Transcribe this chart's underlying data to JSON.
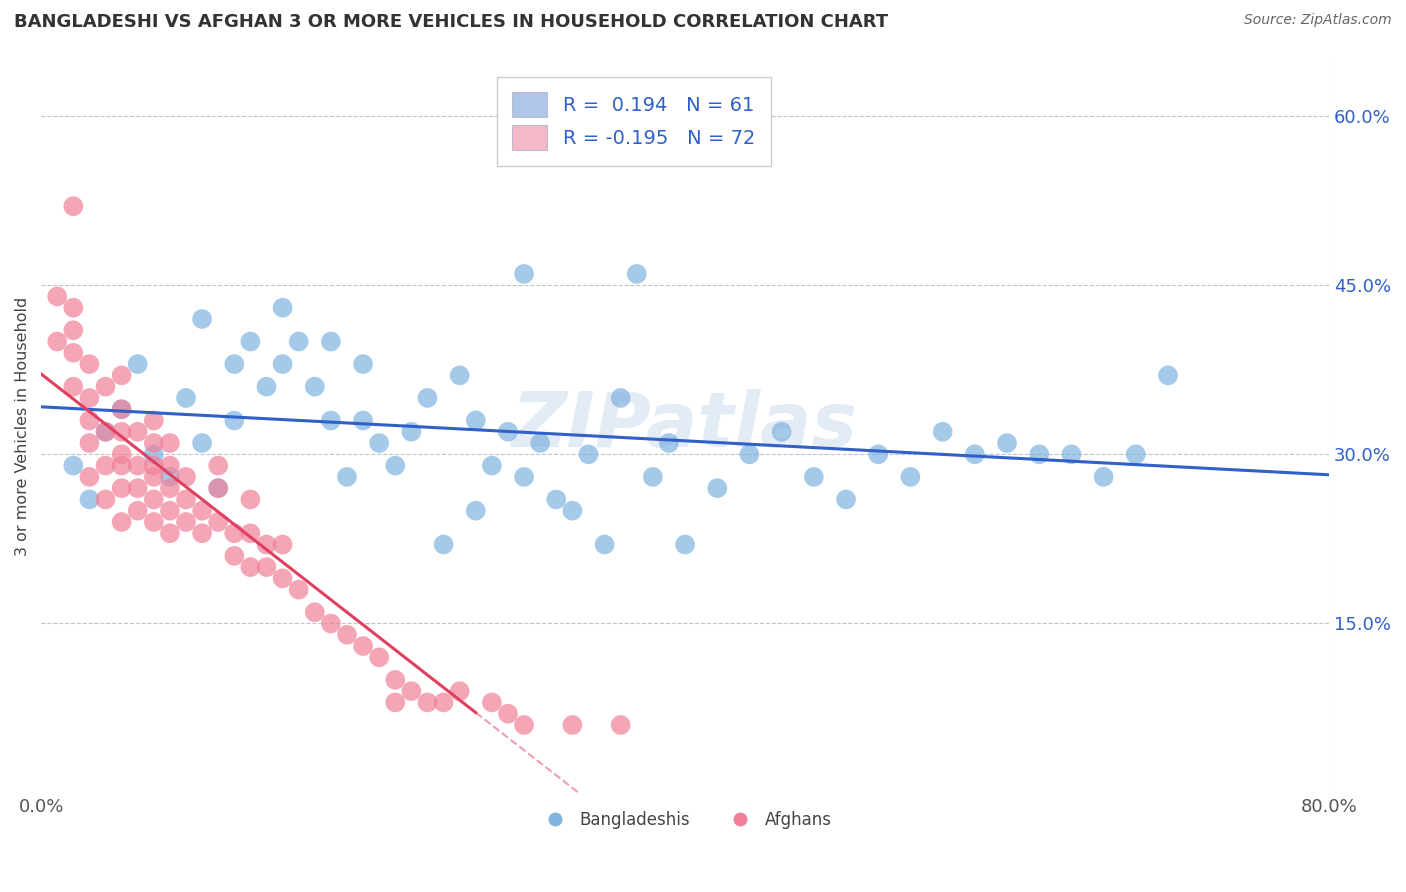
{
  "title": "BANGLADESHI VS AFGHAN 3 OR MORE VEHICLES IN HOUSEHOLD CORRELATION CHART",
  "source": "Source: ZipAtlas.com",
  "ylabel": "3 or more Vehicles in Household",
  "legend1_label": "R =  0.194   N = 61",
  "legend2_label": "R = -0.195   N = 72",
  "legend1_color": "#aec6e8",
  "legend2_color": "#f4b8c8",
  "blue_dot_color": "#7fb3e0",
  "pink_dot_color": "#f08098",
  "blue_line_color": "#3060c8",
  "pink_line_color": "#e04060",
  "watermark": "ZIPatlas",
  "background_color": "#ffffff",
  "grid_color": "#c0c0d0",
  "xlim": [
    0.0,
    0.8
  ],
  "ylim": [
    0.0,
    0.65
  ],
  "blue_scatter_x": [
    0.02,
    0.03,
    0.04,
    0.05,
    0.06,
    0.07,
    0.08,
    0.09,
    0.1,
    0.1,
    0.11,
    0.12,
    0.12,
    0.13,
    0.14,
    0.15,
    0.15,
    0.16,
    0.17,
    0.18,
    0.18,
    0.19,
    0.2,
    0.2,
    0.21,
    0.22,
    0.23,
    0.24,
    0.25,
    0.26,
    0.27,
    0.27,
    0.28,
    0.29,
    0.3,
    0.3,
    0.31,
    0.32,
    0.33,
    0.34,
    0.35,
    0.36,
    0.37,
    0.38,
    0.39,
    0.4,
    0.42,
    0.44,
    0.46,
    0.48,
    0.5,
    0.52,
    0.54,
    0.56,
    0.58,
    0.6,
    0.62,
    0.64,
    0.66,
    0.68,
    0.7
  ],
  "blue_scatter_y": [
    0.29,
    0.26,
    0.32,
    0.34,
    0.38,
    0.3,
    0.28,
    0.35,
    0.31,
    0.42,
    0.27,
    0.38,
    0.33,
    0.4,
    0.36,
    0.38,
    0.43,
    0.4,
    0.36,
    0.33,
    0.4,
    0.28,
    0.33,
    0.38,
    0.31,
    0.29,
    0.32,
    0.35,
    0.22,
    0.37,
    0.25,
    0.33,
    0.29,
    0.32,
    0.46,
    0.28,
    0.31,
    0.26,
    0.25,
    0.3,
    0.22,
    0.35,
    0.46,
    0.28,
    0.31,
    0.22,
    0.27,
    0.3,
    0.32,
    0.28,
    0.26,
    0.3,
    0.28,
    0.32,
    0.3,
    0.31,
    0.3,
    0.3,
    0.28,
    0.3,
    0.37
  ],
  "pink_scatter_x": [
    0.01,
    0.01,
    0.02,
    0.02,
    0.02,
    0.02,
    0.02,
    0.03,
    0.03,
    0.03,
    0.03,
    0.03,
    0.04,
    0.04,
    0.04,
    0.04,
    0.05,
    0.05,
    0.05,
    0.05,
    0.05,
    0.05,
    0.05,
    0.06,
    0.06,
    0.06,
    0.06,
    0.07,
    0.07,
    0.07,
    0.07,
    0.07,
    0.07,
    0.08,
    0.08,
    0.08,
    0.08,
    0.08,
    0.09,
    0.09,
    0.09,
    0.1,
    0.1,
    0.11,
    0.11,
    0.11,
    0.12,
    0.12,
    0.13,
    0.13,
    0.13,
    0.14,
    0.14,
    0.15,
    0.15,
    0.16,
    0.17,
    0.18,
    0.19,
    0.2,
    0.21,
    0.22,
    0.22,
    0.23,
    0.24,
    0.25,
    0.26,
    0.28,
    0.29,
    0.3,
    0.33,
    0.36
  ],
  "pink_scatter_y": [
    0.4,
    0.44,
    0.36,
    0.39,
    0.41,
    0.43,
    0.52,
    0.28,
    0.31,
    0.33,
    0.35,
    0.38,
    0.26,
    0.29,
    0.32,
    0.36,
    0.24,
    0.27,
    0.29,
    0.3,
    0.32,
    0.34,
    0.37,
    0.25,
    0.27,
    0.29,
    0.32,
    0.24,
    0.26,
    0.28,
    0.29,
    0.31,
    0.33,
    0.23,
    0.25,
    0.27,
    0.29,
    0.31,
    0.24,
    0.26,
    0.28,
    0.23,
    0.25,
    0.24,
    0.27,
    0.29,
    0.21,
    0.23,
    0.2,
    0.23,
    0.26,
    0.2,
    0.22,
    0.19,
    0.22,
    0.18,
    0.16,
    0.15,
    0.14,
    0.13,
    0.12,
    0.1,
    0.08,
    0.09,
    0.08,
    0.08,
    0.09,
    0.08,
    0.07,
    0.06,
    0.06,
    0.06
  ],
  "right_ytick_positions": [
    0.15,
    0.3,
    0.45,
    0.6
  ],
  "right_ytick_labels": [
    "15.0%",
    "30.0%",
    "45.0%",
    "60.0%"
  ],
  "xtick_positions": [
    0.0,
    0.8
  ],
  "xtick_labels": [
    "0.0%",
    "80.0%"
  ],
  "blue_reg_R": 0.194,
  "pink_reg_R": -0.195
}
